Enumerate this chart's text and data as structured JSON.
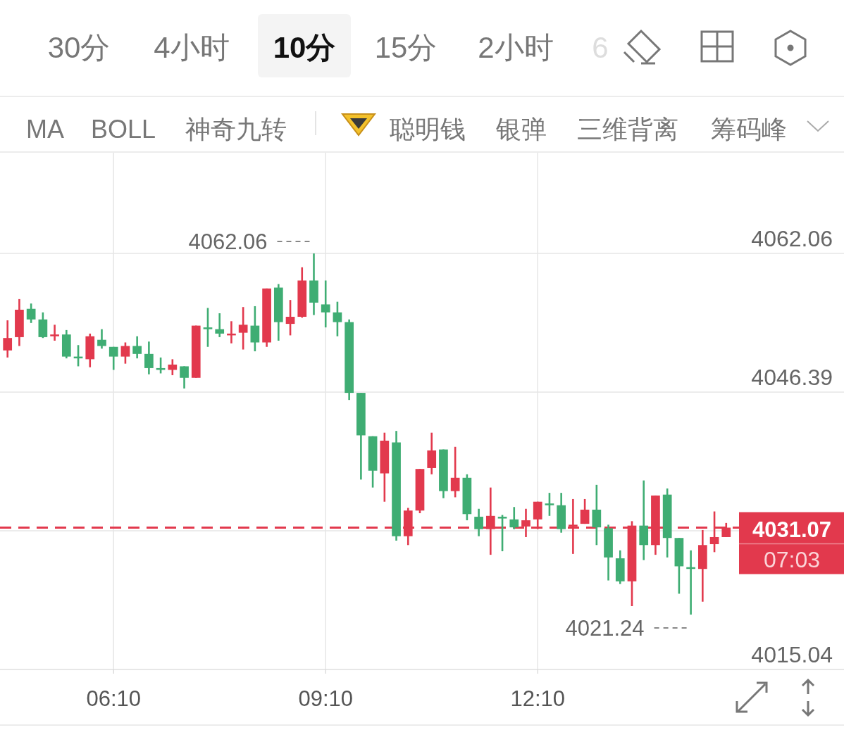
{
  "chart_data": {
    "type": "candlestick",
    "x": [
      4.6667,
      4.8333,
      5,
      5.1667,
      5.3333,
      5.5,
      5.6667,
      5.8333,
      6,
      6.1667,
      6.3333,
      6.5,
      6.6667,
      6.8333,
      7,
      7.1667,
      7.3333,
      7.5,
      7.6667,
      7.8333,
      8,
      8.1667,
      8.3333,
      8.5,
      8.6667,
      8.8333,
      9,
      9.1667,
      9.3333,
      9.5,
      9.6667,
      9.8333,
      10,
      10.1667,
      10.3333,
      10.5,
      10.6667,
      10.8333,
      11,
      11.1667,
      11.3333,
      11.5,
      11.6667,
      11.8333,
      12,
      12.1667,
      12.3333,
      12.5,
      12.6667,
      12.8333,
      13,
      13.1667,
      13.3333,
      13.5,
      13.6667,
      13.8333,
      14,
      14.1667,
      14.3333,
      14.5,
      14.6667,
      14.8333
    ],
    "ohlc": [
      [
        4051.1,
        4054.5,
        4050.3,
        4052.5
      ],
      [
        4052.6,
        4056.9,
        4051.6,
        4055.7
      ],
      [
        4055.8,
        4056.4,
        4054.2,
        4054.6
      ],
      [
        4054.6,
        4055.4,
        4052.5,
        4052.6
      ],
      [
        4052.8,
        4054.0,
        4052.2,
        4052.9
      ],
      [
        4052.9,
        4053.4,
        4050.2,
        4050.4
      ],
      [
        4050.4,
        4051.7,
        4049.3,
        4050.3
      ],
      [
        4050.1,
        4053.0,
        4049.2,
        4052.7
      ],
      [
        4052.3,
        4053.5,
        4051.3,
        4051.6
      ],
      [
        4051.5,
        4051.5,
        4048.9,
        4050.4
      ],
      [
        4050.4,
        4052.0,
        4049.6,
        4051.6
      ],
      [
        4051.6,
        4052.7,
        4050.2,
        4050.7
      ],
      [
        4050.7,
        4052.1,
        4048.4,
        4049.1
      ],
      [
        4049.1,
        4050.3,
        4048.5,
        4049.0
      ],
      [
        4048.9,
        4050.1,
        4048.3,
        4049.5
      ],
      [
        4049.3,
        4049.3,
        4046.8,
        4048.0
      ],
      [
        4048.0,
        4053.9,
        4048.0,
        4053.9
      ],
      [
        4053.7,
        4055.9,
        4051.5,
        4053.6
      ],
      [
        4053.5,
        4055.3,
        4052.6,
        4053.0
      ],
      [
        4052.9,
        4054.4,
        4051.9,
        4053.0
      ],
      [
        4053.1,
        4056.0,
        4051.2,
        4054.0
      ],
      [
        4053.9,
        4056.1,
        4051.0,
        4052.0
      ],
      [
        4052.0,
        4058.1,
        4051.5,
        4058.1
      ],
      [
        4058.2,
        4058.6,
        4052.2,
        4054.3
      ],
      [
        4054.1,
        4056.8,
        4052.8,
        4054.9
      ],
      [
        4054.9,
        4060.5,
        4054.8,
        4059.0
      ],
      [
        4059.0,
        4062.06,
        4055.1,
        4056.5
      ],
      [
        4056.3,
        4059.0,
        4053.7,
        4055.4
      ],
      [
        4055.4,
        4056.6,
        4052.7,
        4054.3
      ],
      [
        4054.3,
        4054.6,
        4045.5,
        4046.3
      ],
      [
        4046.3,
        4046.3,
        4036.5,
        4041.5
      ],
      [
        4041.4,
        4041.4,
        4035.6,
        4037.5
      ],
      [
        4037.2,
        4041.8,
        4034.0,
        4040.9
      ],
      [
        4040.7,
        4042.0,
        4029.6,
        4030.1
      ],
      [
        4030.1,
        4033.3,
        4029.1,
        4033.0
      ],
      [
        4033.0,
        4037.7,
        4032.7,
        4037.7
      ],
      [
        4037.8,
        4041.8,
        4037.1,
        4039.8
      ],
      [
        4039.9,
        4039.9,
        4034.4,
        4035.2
      ],
      [
        4035.2,
        4040.2,
        4034.5,
        4036.7
      ],
      [
        4036.7,
        4037.1,
        4031.9,
        4032.6
      ],
      [
        4032.3,
        4033.2,
        4030.1,
        4030.9
      ],
      [
        4030.9,
        4035.6,
        4028.0,
        4032.4
      ],
      [
        4032.3,
        4032.5,
        4028.4,
        4032.2
      ],
      [
        4032.0,
        4033.4,
        4030.9,
        4031.1
      ],
      [
        4031.2,
        4033.2,
        4030.0,
        4031.9
      ],
      [
        4032.0,
        4034.0,
        4030.9,
        4034.0
      ],
      [
        4033.8,
        4035.0,
        4032.4,
        4033.7
      ],
      [
        4033.6,
        4035.0,
        4030.5,
        4030.9
      ],
      [
        4031.3,
        4034.3,
        4028.1,
        4031.4
      ],
      [
        4031.5,
        4034.3,
        4031.5,
        4033.1
      ],
      [
        4033.1,
        4035.9,
        4029.1,
        4031.1
      ],
      [
        4031.0,
        4031.4,
        4025.1,
        4027.7
      ],
      [
        4027.6,
        4028.5,
        4024.7,
        4025.0
      ],
      [
        4025.0,
        4031.8,
        4022.2,
        4031.3
      ],
      [
        4031.3,
        4036.4,
        4027.4,
        4029.1
      ],
      [
        4029.1,
        4034.7,
        4028.0,
        4034.7
      ],
      [
        4034.8,
        4035.5,
        4027.7,
        4029.9
      ],
      [
        4029.9,
        4029.9,
        4023.6,
        4026.7
      ],
      [
        4026.6,
        4028.5,
        4021.24,
        4026.5
      ],
      [
        4026.4,
        4030.8,
        4022.7,
        4029.1
      ],
      [
        4029.2,
        4032.9,
        4028.3,
        4030.0
      ],
      [
        4030.0,
        4031.6,
        4030.0,
        4031.07
      ]
    ],
    "colors": [
      "#e2394d",
      "#e2394d",
      "#3fad73",
      "#3fad73",
      "#e2394d",
      "#3fad73",
      "#3fad73",
      "#e2394d",
      "#3fad73",
      "#3fad73",
      "#e2394d",
      "#3fad73",
      "#3fad73",
      "#3fad73",
      "#e2394d",
      "#3fad73",
      "#e2394d",
      "#3fad73",
      "#3fad73",
      "#e2394d",
      "#e2394d",
      "#3fad73",
      "#e2394d",
      "#3fad73",
      "#e2394d",
      "#e2394d",
      "#3fad73",
      "#3fad73",
      "#3fad73",
      "#3fad73",
      "#3fad73",
      "#3fad73",
      "#e2394d",
      "#3fad73",
      "#e2394d",
      "#e2394d",
      "#e2394d",
      "#3fad73",
      "#e2394d",
      "#3fad73",
      "#3fad73",
      "#e2394d",
      "#3fad73",
      "#3fad73",
      "#e2394d",
      "#e2394d",
      "#3fad73",
      "#3fad73",
      "#e2394d",
      "#e2394d",
      "#3fad73",
      "#3fad73",
      "#3fad73",
      "#e2394d",
      "#3fad73",
      "#e2394d",
      "#3fad73",
      "#3fad73",
      "#3fad73",
      "#e2394d",
      "#e2394d",
      "#e2394d"
    ],
    "xlim": [
      4.56,
      16.5
    ],
    "xticks": [
      {
        "value": 6.1667,
        "label": "06:10"
      },
      {
        "value": 9.1667,
        "label": "09:10"
      },
      {
        "value": 12.1667,
        "label": "12:10"
      }
    ],
    "ylim": [
      4015.04,
      4073.44
    ],
    "yticks": [
      4015.04,
      {
        "value": 4030.71,
        "label": null
      },
      4046.39,
      4062.06
    ],
    "grid": true,
    "ref_lines": [
      {
        "axis": "y",
        "value": 4031.07,
        "label": "4031.07",
        "color": "#e2394d",
        "line_style": "dashed"
      }
    ],
    "annotations": [
      "30分",
      "4小时",
      "10分",
      "15分",
      "2小时",
      "6",
      "MA",
      "BOLL",
      "神奇九转",
      "聪明钱",
      "银弹",
      "三维背离",
      "筹码峰",
      {
        "text": "4062.06",
        "x": 9,
        "y": 4062.06
      },
      {
        "text": "4021.24",
        "x": 14.3333,
        "y": 4021.24
      },
      "07:03"
    ]
  }
}
